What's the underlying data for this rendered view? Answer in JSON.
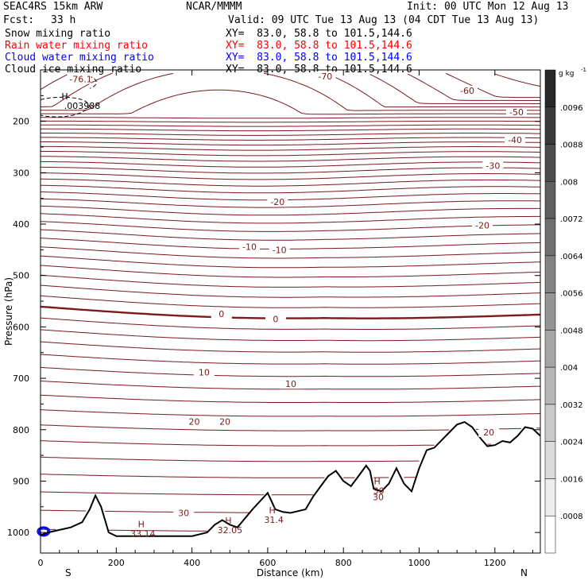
{
  "header": {
    "model": "SEAC4RS 15km ARW",
    "center": "NCAR/MMMM",
    "init": "Init: 00 UTC Mon 12 Aug 13",
    "fcst_label": "Fcst:",
    "fcst_value": "33 h",
    "valid": "Valid: 09 UTC Tue 13 Aug 13 (04 CDT Tue 13 Aug 13)"
  },
  "fields": [
    {
      "name": "Snow mixing ratio",
      "xy": "XY=  83.0, 58.8 to 101.5,144.6",
      "color": "#000000"
    },
    {
      "name": "Rain water mixing ratio",
      "xy": "XY=  83.0, 58.8 to 101.5,144.6",
      "color": "#ff0000"
    },
    {
      "name": "Cloud water mixing ratio",
      "xy": "XY=  83.0, 58.8 to 101.5,144.6",
      "color": "#0000ff"
    },
    {
      "name": "Cloud ice mixing ratio",
      "xy": "XY=  83.0, 58.8 to 101.5,144.6",
      "color": "#000000"
    }
  ],
  "chart_data": {
    "type": "contour-cross-section",
    "xlabel": "Distance (km)",
    "ylabel": "Pressure (hPa)",
    "xlim": [
      0,
      1320
    ],
    "ylim": [
      1040,
      100
    ],
    "x_ticks": [
      0,
      200,
      400,
      600,
      800,
      1000,
      1200
    ],
    "y_ticks": [
      200,
      300,
      400,
      500,
      600,
      700,
      800,
      900,
      1000
    ],
    "endpoints": {
      "left": "S",
      "right": "N"
    },
    "contour_color": "#7a1a1a",
    "terrain_color": "#000000",
    "isotherm_levels": [
      -70,
      -60,
      -50,
      -40,
      -30,
      -20,
      -10,
      0,
      10,
      20,
      30
    ],
    "contour_labels": [
      {
        "text": "-76.1",
        "x": 106,
        "p": 118
      },
      {
        "text": "-70",
        "x": 752,
        "p": 112
      },
      {
        "text": "-60",
        "x": 1127,
        "p": 140
      },
      {
        "text": "-50",
        "x": 1257,
        "p": 182
      },
      {
        "text": "-40",
        "x": 1253,
        "p": 236
      },
      {
        "text": "-30",
        "x": 1195,
        "p": 286
      },
      {
        "text": "-20",
        "x": 626,
        "p": 357
      },
      {
        "text": "-20",
        "x": 1167,
        "p": 402
      },
      {
        "text": "-10",
        "x": 552,
        "p": 444
      },
      {
        "text": "-10",
        "x": 631,
        "p": 450
      },
      {
        "text": "0",
        "x": 478,
        "p": 575
      },
      {
        "text": "0",
        "x": 621,
        "p": 585
      },
      {
        "text": "10",
        "x": 432,
        "p": 688
      },
      {
        "text": "10",
        "x": 661,
        "p": 711
      },
      {
        "text": "20",
        "x": 406,
        "p": 784
      },
      {
        "text": "20",
        "x": 487,
        "p": 784
      },
      {
        "text": "20",
        "x": 1184,
        "p": 805
      },
      {
        "text": "30",
        "x": 378,
        "p": 962
      },
      {
        "text": "30",
        "x": 892,
        "p": 931
      }
    ],
    "highs": [
      {
        "label": "H",
        "value": "33.14",
        "x": 266,
        "p": 993
      },
      {
        "label": "H",
        "value": "32.05",
        "x": 496,
        "p": 986
      },
      {
        "label": "H",
        "value": "31.4",
        "x": 612,
        "p": 966
      },
      {
        "label": "H",
        "value": "30",
        "x": 889,
        "p": 909
      },
      {
        "label": "H",
        "value": ".003988",
        "x": 64,
        "p": 160
      }
    ],
    "terrain": {
      "x": [
        0,
        20,
        50,
        80,
        110,
        130,
        145,
        160,
        180,
        200,
        300,
        400,
        440,
        460,
        480,
        500,
        520,
        560,
        600,
        620,
        640,
        660,
        700,
        720,
        740,
        760,
        780,
        800,
        820,
        840,
        860,
        870,
        880,
        900,
        920,
        940,
        960,
        980,
        1000,
        1020,
        1040,
        1060,
        1080,
        1100,
        1120,
        1140,
        1160,
        1180,
        1200,
        1220,
        1240,
        1260,
        1280,
        1300,
        1320
      ],
      "p": [
        1005,
        1000,
        995,
        990,
        980,
        955,
        928,
        950,
        1000,
        1007,
        1007,
        1007,
        1000,
        985,
        976,
        985,
        990,
        955,
        923,
        955,
        960,
        962,
        955,
        930,
        910,
        890,
        880,
        900,
        910,
        890,
        870,
        880,
        915,
        920,
        905,
        875,
        905,
        920,
        875,
        840,
        835,
        820,
        805,
        790,
        785,
        795,
        815,
        832,
        830,
        822,
        825,
        812,
        795,
        798,
        812
      ]
    },
    "colorbar": {
      "unit_label": "g kg",
      "unit_exp": "-1",
      "ticks": [
        ".0096",
        ".0088",
        ".008",
        ".0072",
        ".0064",
        ".0056",
        ".0048",
        ".004",
        ".0032",
        ".0024",
        ".0016",
        ".0008"
      ]
    }
  }
}
